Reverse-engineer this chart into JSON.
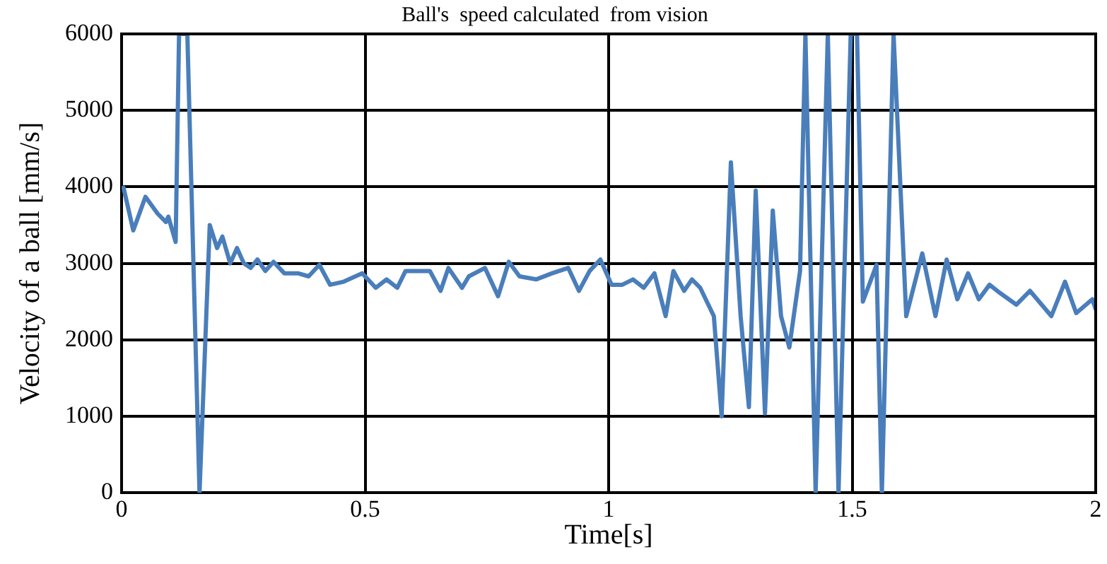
{
  "chart_data": {
    "type": "line",
    "title": "Ball's  speed calculated  from vision",
    "xlabel": "Time[s]",
    "ylabel": "Velocity of a ball [mm/s]",
    "xlim": [
      0,
      2
    ],
    "ylim": [
      0,
      6000
    ],
    "xticks": [
      0,
      0.5,
      1,
      1.5,
      2
    ],
    "yticks": [
      0,
      1000,
      2000,
      3000,
      4000,
      5000,
      6000
    ],
    "grid": true,
    "legend": false,
    "marker": "none",
    "line_style": "solid",
    "series": [
      {
        "color": "#4a7ebb",
        "x": [
          0.004,
          0.024,
          0.049,
          0.074,
          0.091,
          0.096,
          0.111,
          0.118,
          0.135,
          0.16,
          0.181,
          0.196,
          0.207,
          0.223,
          0.237,
          0.251,
          0.265,
          0.279,
          0.295,
          0.312,
          0.334,
          0.362,
          0.384,
          0.406,
          0.428,
          0.456,
          0.494,
          0.522,
          0.544,
          0.566,
          0.583,
          0.633,
          0.655,
          0.671,
          0.699,
          0.713,
          0.746,
          0.773,
          0.795,
          0.817,
          0.851,
          0.884,
          0.917,
          0.939,
          0.961,
          0.983,
          1.006,
          1.028,
          1.05,
          1.072,
          1.094,
          1.117,
          1.133,
          1.155,
          1.171,
          1.188,
          1.216,
          1.232,
          1.251,
          1.271,
          1.288,
          1.302,
          1.321,
          1.337,
          1.354,
          1.371,
          1.393,
          1.404,
          1.425,
          1.45,
          1.472,
          1.497,
          1.51,
          1.522,
          1.55,
          1.561,
          1.585,
          1.611,
          1.644,
          1.671,
          1.694,
          1.716,
          1.738,
          1.76,
          1.782,
          1.804,
          1.837,
          1.865,
          1.909,
          1.937,
          1.96,
          1.993,
          2.0
        ],
        "values": [
          3990,
          3430,
          3870,
          3650,
          3540,
          3610,
          3280,
          6000,
          6000,
          0,
          3500,
          3200,
          3350,
          3000,
          3200,
          3000,
          2940,
          3050,
          2900,
          3020,
          2870,
          2870,
          2830,
          2980,
          2720,
          2760,
          2870,
          2680,
          2790,
          2680,
          2900,
          2900,
          2640,
          2940,
          2680,
          2830,
          2940,
          2570,
          3020,
          2830,
          2790,
          2870,
          2940,
          2640,
          2900,
          3050,
          2720,
          2720,
          2790,
          2680,
          2870,
          2310,
          2900,
          2640,
          2790,
          2680,
          2310,
          1000,
          4320,
          2310,
          1120,
          3950,
          1040,
          3690,
          2310,
          1900,
          2900,
          6000,
          0,
          6000,
          0,
          6000,
          6000,
          2500,
          2980,
          0,
          6000,
          2310,
          3130,
          2310,
          3050,
          2530,
          2870,
          2530,
          2720,
          2610,
          2460,
          2640,
          2310,
          2760,
          2350,
          2530,
          2400
        ]
      }
    ]
  }
}
